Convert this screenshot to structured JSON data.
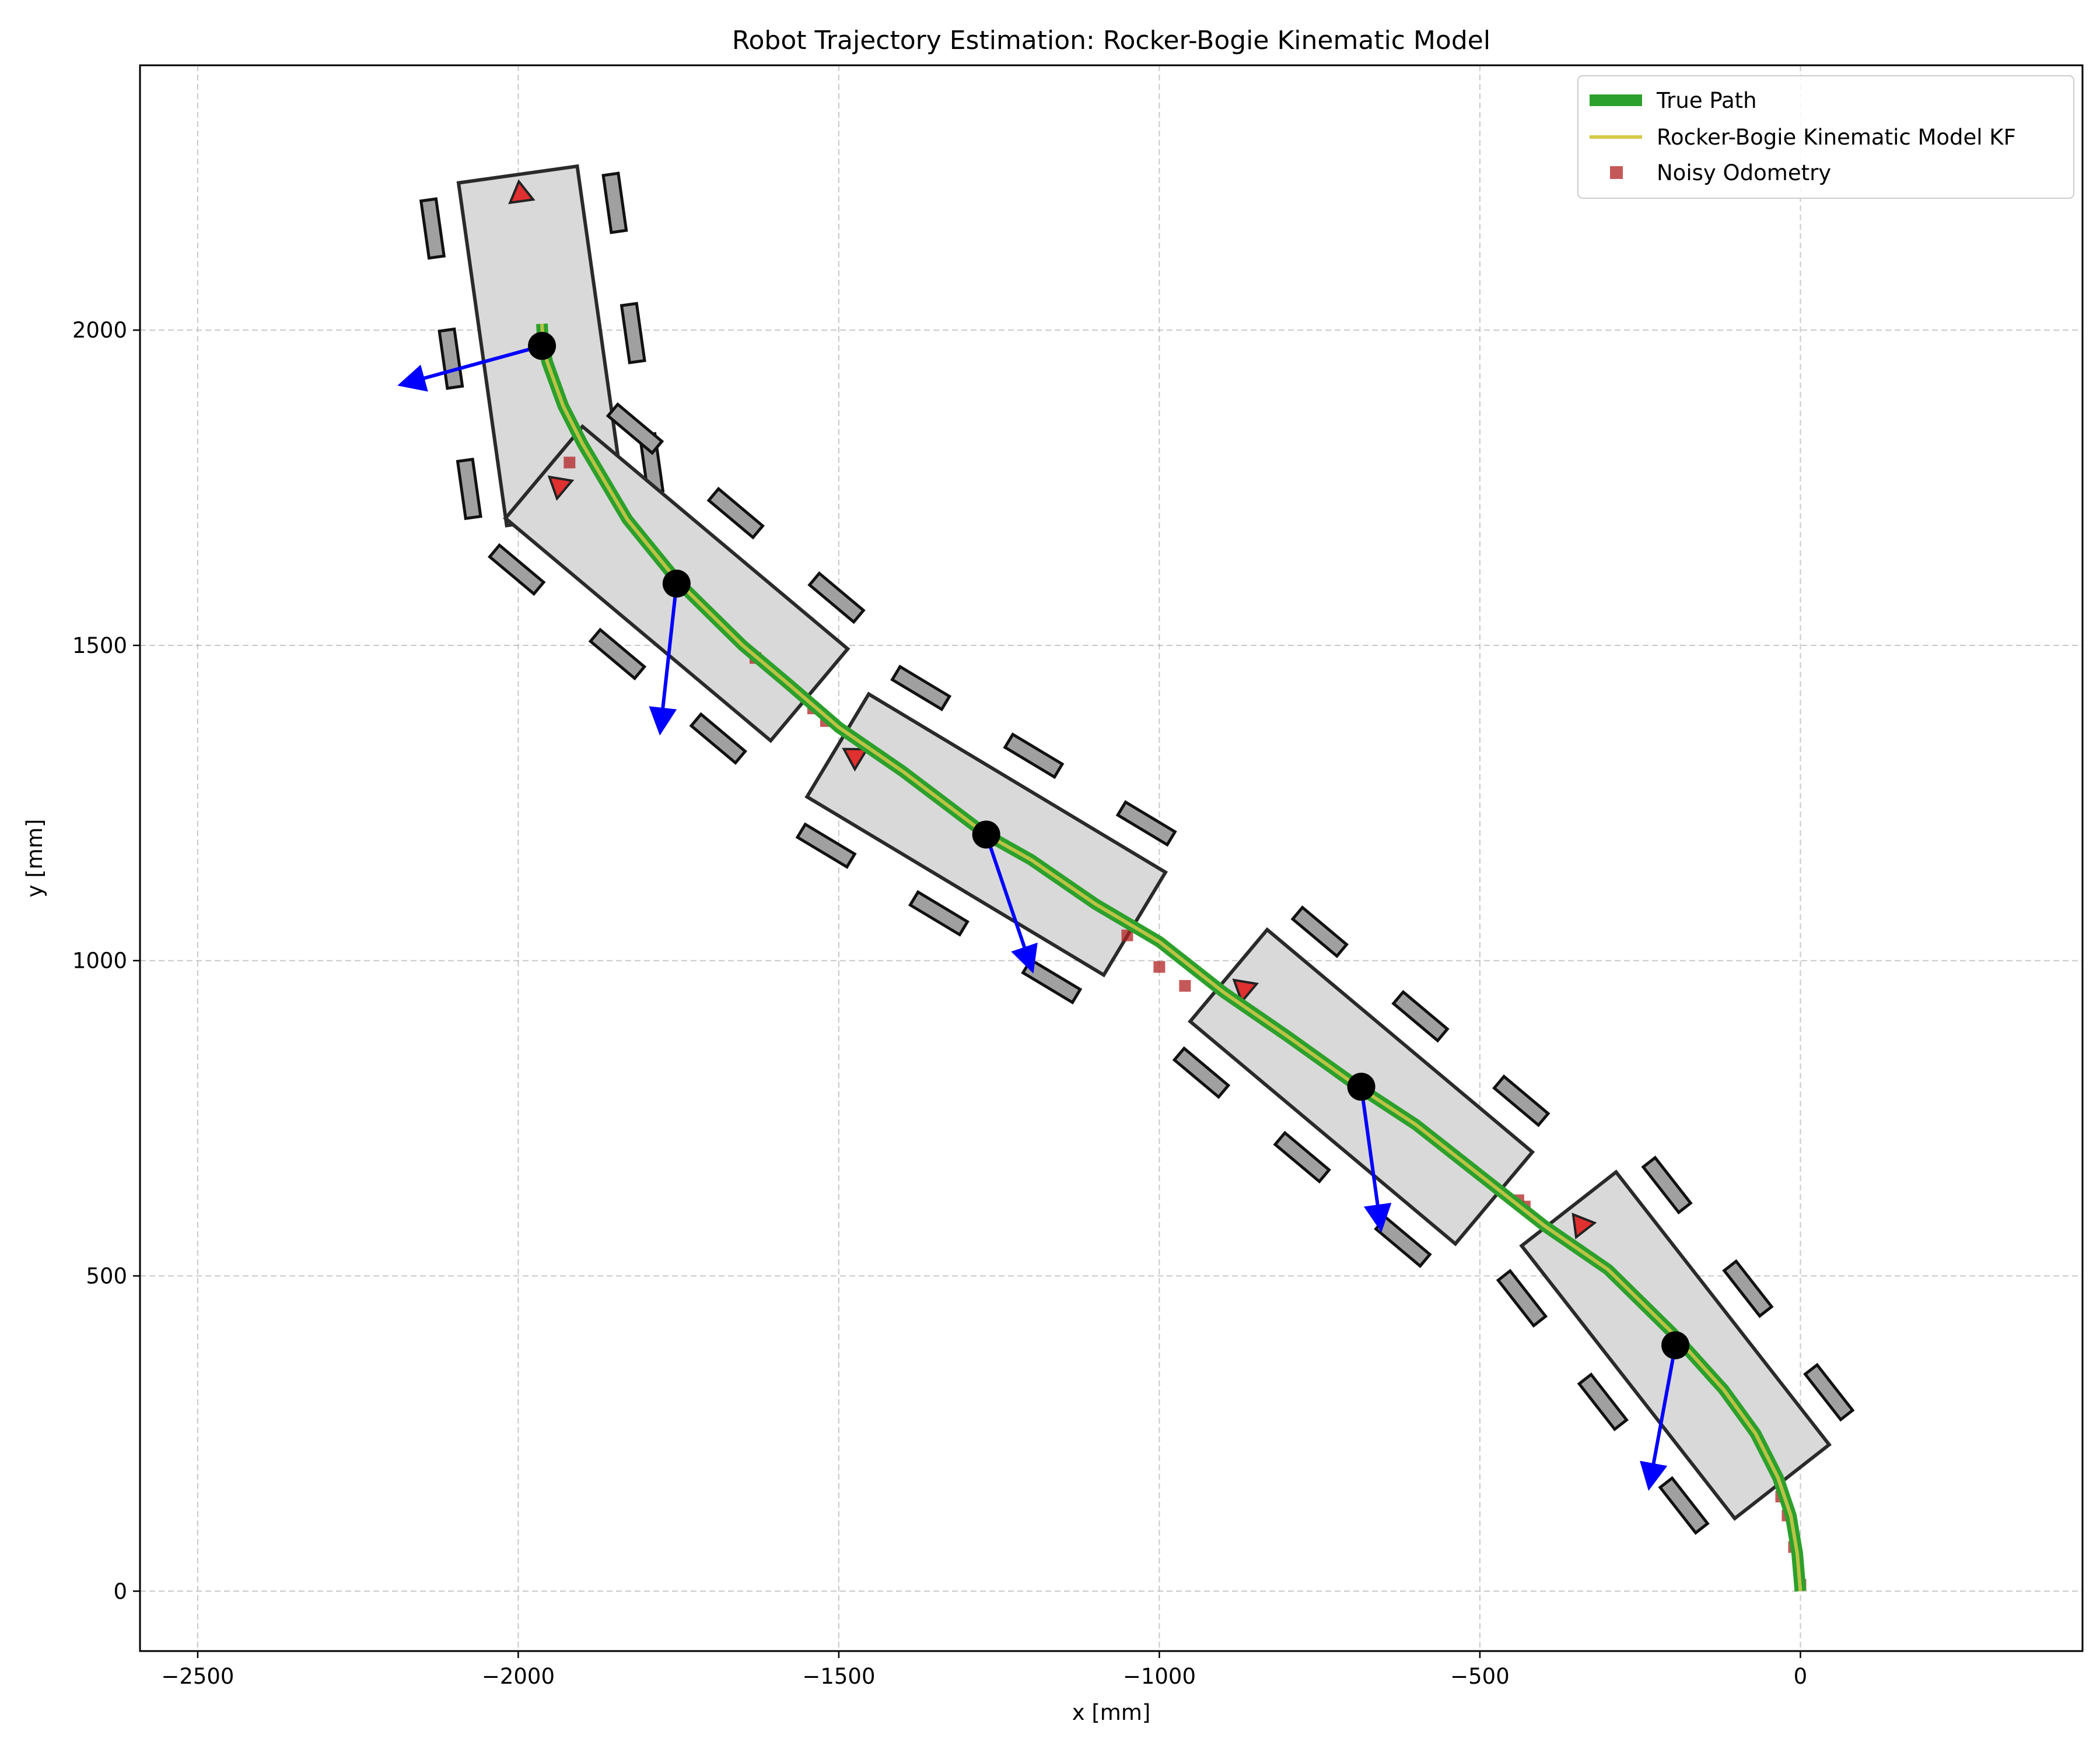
{
  "chart_data": {
    "type": "line",
    "title": "Robot Trajectory Estimation: Rocker-Bogie Kinematic Model",
    "xlabel": "x [mm]",
    "ylabel": "y [mm]",
    "xlim": [
      -2590,
      440
    ],
    "ylim": [
      -95,
      2420
    ],
    "xticks": [
      -2500,
      -2000,
      -1500,
      -1000,
      -500,
      0
    ],
    "yticks": [
      0,
      500,
      1000,
      1500,
      2000
    ],
    "grid": true,
    "legend_position": "top-right",
    "series": [
      {
        "name": "True Path",
        "color": "#2ca02c",
        "x": [
          0,
          -5,
          -15,
          -35,
          -70,
          -120,
          -200,
          -300,
          -400,
          -500,
          -600,
          -690,
          -800,
          -900,
          -1000,
          -1100,
          -1200,
          -1270,
          -1400,
          -1500,
          -1580,
          -1650,
          -1750,
          -1830,
          -1900,
          -1930,
          -1955,
          -1962,
          -1963
        ],
        "y": [
          0,
          60,
          120,
          180,
          250,
          320,
          410,
          510,
          580,
          660,
          740,
          800,
          880,
          950,
          1030,
          1090,
          1160,
          1200,
          1300,
          1370,
          1440,
          1500,
          1600,
          1700,
          1820,
          1880,
          1950,
          1990,
          2010
        ]
      },
      {
        "name": "Rocker-Bogie Kinematic Model KF",
        "color": "#d4c94a",
        "x": [
          0,
          -5,
          -15,
          -35,
          -70,
          -120,
          -200,
          -300,
          -400,
          -500,
          -600,
          -690,
          -800,
          -900,
          -1000,
          -1100,
          -1200,
          -1270,
          -1400,
          -1500,
          -1580,
          -1650,
          -1750,
          -1830,
          -1900,
          -1930,
          -1955,
          -1962,
          -1963
        ],
        "y": [
          0,
          60,
          120,
          180,
          250,
          320,
          410,
          510,
          580,
          660,
          740,
          800,
          880,
          950,
          1030,
          1090,
          1160,
          1200,
          1300,
          1370,
          1440,
          1500,
          1600,
          1700,
          1820,
          1880,
          1950,
          1990,
          2010
        ]
      },
      {
        "name": "Noisy Odometry",
        "color": "#b22222",
        "x": [
          0,
          -10,
          -20,
          -30,
          -440,
          -430,
          -960,
          -1000,
          -1050,
          -1520,
          -1540,
          -1630,
          -1920
        ],
        "y": [
          10,
          70,
          120,
          150,
          620,
          610,
          960,
          990,
          1040,
          1380,
          1400,
          1480,
          1790
        ]
      }
    ],
    "robot_poses": [
      {
        "x": -1963,
        "y": 1975,
        "angle_deg": 98,
        "arrow_dx": -215,
        "arrow_dy": -60
      },
      {
        "x": -1753,
        "y": 1598,
        "angle_deg": 140,
        "arrow_dx": -25,
        "arrow_dy": -230
      },
      {
        "x": -1270,
        "y": 1200,
        "angle_deg": 149,
        "arrow_dx": 70,
        "arrow_dy": -210
      },
      {
        "x": -685,
        "y": 800,
        "angle_deg": 140,
        "arrow_dx": 30,
        "arrow_dy": -220
      },
      {
        "x": -195,
        "y": 390,
        "angle_deg": 128,
        "arrow_dx": -40,
        "arrow_dy": -220
      }
    ]
  }
}
